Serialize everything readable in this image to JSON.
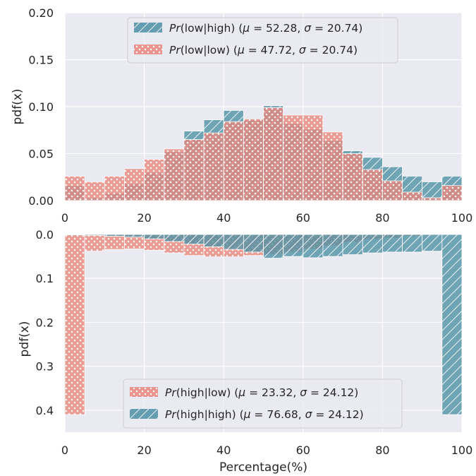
{
  "chart_data": [
    {
      "type": "bar",
      "panel": "top",
      "xlabel": "",
      "ylabel": "pdf(x)",
      "xlim": [
        0,
        100
      ],
      "ylim": [
        0,
        0.2
      ],
      "y_inverted": false,
      "xticks": [
        "0",
        "20",
        "40",
        "60",
        "80",
        "100"
      ],
      "yticks": [
        "0.00",
        "0.05",
        "0.10",
        "0.15",
        "0.20"
      ],
      "grid": true,
      "legend_position": "upper-center",
      "bin_edges": [
        0,
        5,
        10,
        15,
        20,
        25,
        30,
        35,
        40,
        45,
        50,
        55,
        60,
        65,
        70,
        75,
        80,
        85,
        90,
        95,
        100
      ],
      "series": [
        {
          "name": "Pr(low|high) (μ = 52.28, σ = 20.74)",
          "legend": {
            "italic": "Pr",
            "rest": "(low|high) (",
            "mu_sym": "μ",
            "mu_text": " = 52.28, ",
            "sigma_sym": "σ",
            "sigma_text": " = 20.74)"
          },
          "color": "#4c8fa3",
          "pattern": "hatch-diagonal",
          "values": [
            0.016,
            0.003,
            0.008,
            0.018,
            0.03,
            0.052,
            0.074,
            0.086,
            0.096,
            0.086,
            0.101,
            0.082,
            0.076,
            0.064,
            0.053,
            0.046,
            0.036,
            0.026,
            0.02,
            0.026
          ]
        },
        {
          "name": "Pr(low|low) (μ = 47.72, σ = 20.74)",
          "legend": {
            "italic": "Pr",
            "rest": "(low|low) (",
            "mu_sym": "μ",
            "mu_text": " = 47.72, ",
            "sigma_sym": "σ",
            "sigma_text": " = 20.74)"
          },
          "color": "#e8847a",
          "pattern": "dots",
          "values": [
            0.026,
            0.02,
            0.026,
            0.034,
            0.044,
            0.055,
            0.065,
            0.072,
            0.084,
            0.087,
            0.099,
            0.091,
            0.091,
            0.073,
            0.05,
            0.033,
            0.021,
            0.009,
            0.003,
            0.016
          ]
        }
      ]
    },
    {
      "type": "bar",
      "panel": "bottom",
      "xlabel": "Percentage(%)",
      "ylabel": "pdf(x)",
      "xlim": [
        0,
        100
      ],
      "ylim": [
        0,
        0.45
      ],
      "y_inverted": true,
      "xticks": [
        "0",
        "20",
        "40",
        "60",
        "80",
        "100"
      ],
      "yticks": [
        "0.0",
        "0.1",
        "0.2",
        "0.3",
        "0.4"
      ],
      "grid": true,
      "legend_position": "lower-center",
      "bin_edges": [
        0,
        5,
        10,
        15,
        20,
        25,
        30,
        35,
        40,
        45,
        50,
        55,
        60,
        65,
        70,
        75,
        80,
        85,
        90,
        95,
        100
      ],
      "series": [
        {
          "name": "Pr(high|low) (μ = 23.32, σ = 24.12)",
          "legend": {
            "italic": "Pr",
            "rest": "(high|low) (",
            "mu_sym": "μ",
            "mu_text": " = 23.32, ",
            "sigma_sym": "σ",
            "sigma_text": " = 24.12)"
          },
          "color": "#e8847a",
          "pattern": "dots",
          "values": [
            0.41,
            0.038,
            0.034,
            0.033,
            0.036,
            0.042,
            0.048,
            0.051,
            0.051,
            0.048,
            0.045,
            0.04,
            0.033,
            0.026,
            0.018,
            0.012,
            0.008,
            0.004,
            0.002,
            0.001
          ]
        },
        {
          "name": "Pr(high|high) (μ = 76.68, σ = 24.12)",
          "legend": {
            "italic": "Pr",
            "rest": "(high|high) (",
            "mu_sym": "μ",
            "mu_text": " = 76.68, ",
            "sigma_sym": "σ",
            "sigma_text": " = 24.12)"
          },
          "color": "#4c8fa3",
          "pattern": "hatch-diagonal",
          "values": [
            0.001,
            0.002,
            0.004,
            0.006,
            0.01,
            0.016,
            0.022,
            0.028,
            0.034,
            0.04,
            0.054,
            0.05,
            0.053,
            0.05,
            0.046,
            0.042,
            0.04,
            0.04,
            0.038,
            0.41
          ]
        }
      ]
    }
  ]
}
